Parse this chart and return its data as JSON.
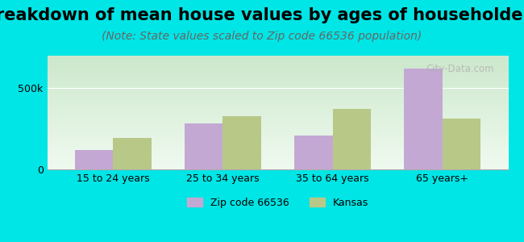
{
  "title": "Breakdown of mean house values by ages of householders",
  "subtitle": "(Note: State values scaled to Zip code 66536 population)",
  "categories": [
    "15 to 24 years",
    "25 to 34 years",
    "35 to 64 years",
    "65 years+"
  ],
  "zip_values": [
    120000,
    285000,
    210000,
    620000
  ],
  "kansas_values": [
    195000,
    330000,
    370000,
    315000
  ],
  "zip_color": "#c4a8d4",
  "kansas_color": "#b8c887",
  "background_color": "#00e5e5",
  "grad_top": "#cce8cc",
  "grad_bottom": "#f0faf0",
  "ylim": [
    0,
    700000
  ],
  "ytick_vals": [
    0,
    500000
  ],
  "ytick_labels": [
    "0",
    "500k"
  ],
  "zip_label": "Zip code 66536",
  "kansas_label": "Kansas",
  "watermark": "City-Data.com",
  "title_fontsize": 15,
  "subtitle_fontsize": 10,
  "bar_width": 0.35
}
